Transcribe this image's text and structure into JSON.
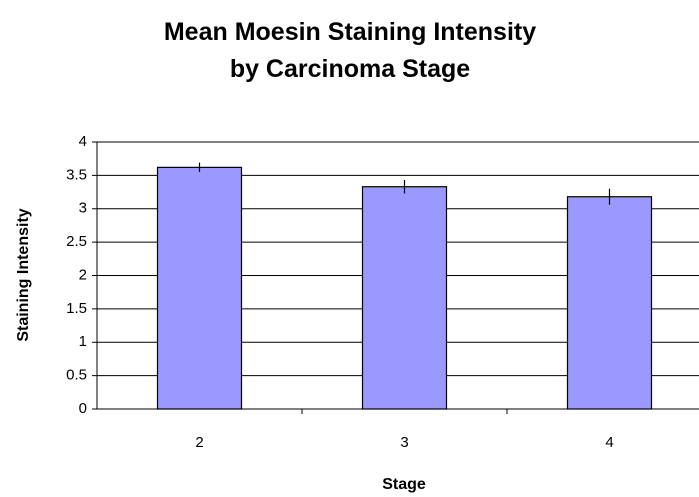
{
  "chart_data": {
    "type": "bar",
    "title": "Mean Moesin Staining Intensity by Carcinoma Stage",
    "x_label": "Stage",
    "y_label": "Staining Intensity",
    "categories": [
      "2",
      "3",
      "4"
    ],
    "values": [
      3.62,
      3.33,
      3.18
    ],
    "errors": [
      0.07,
      0.1,
      0.12
    ],
    "color": "#9999ff",
    "ylim": [
      0,
      4
    ],
    "yticks": [
      0,
      0.5,
      1,
      1.5,
      2,
      2.5,
      3,
      3.5,
      4
    ],
    "grid": true
  }
}
